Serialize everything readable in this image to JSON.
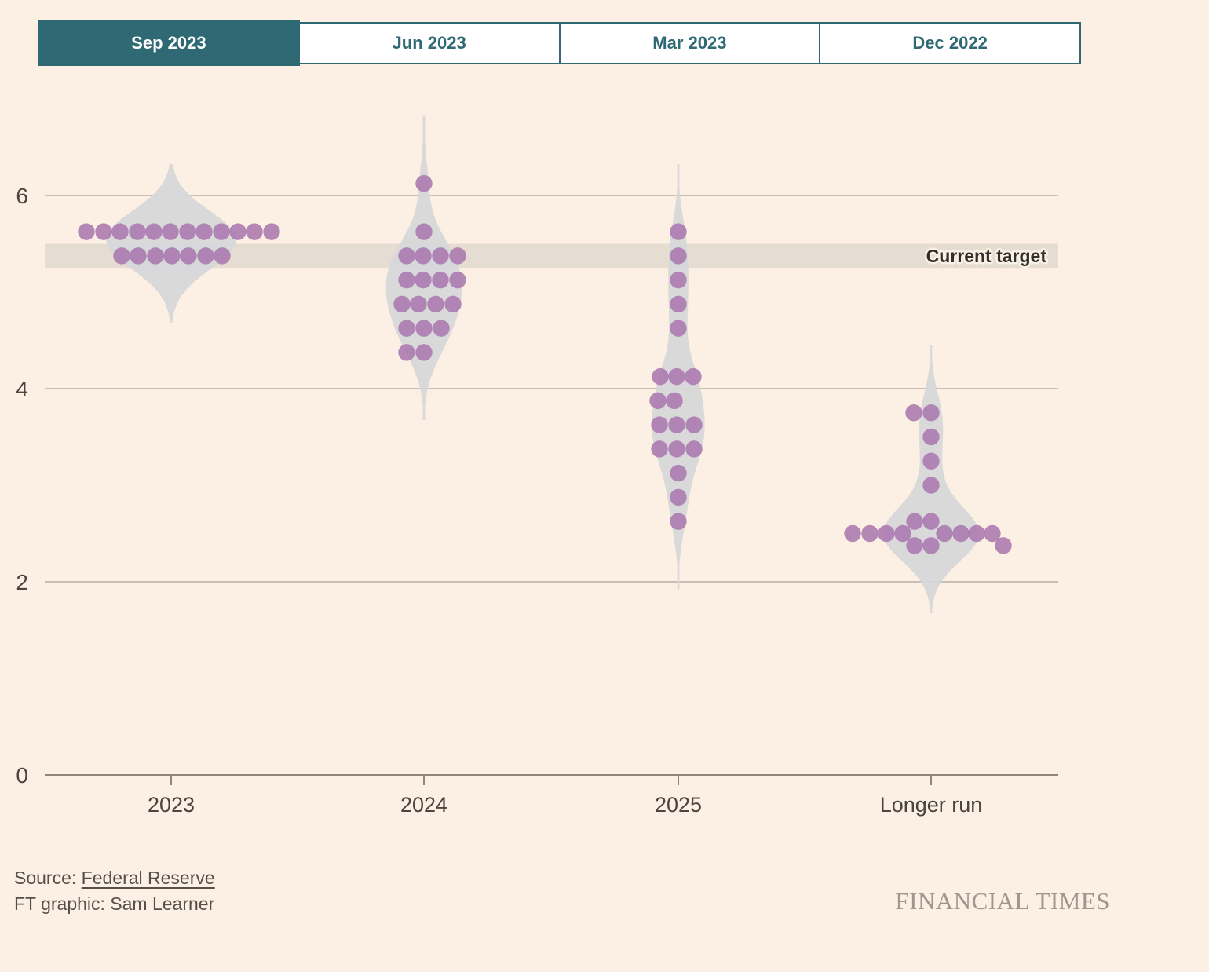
{
  "tabs": [
    {
      "label": "Sep 2023",
      "selected": true
    },
    {
      "label": "Jun 2023",
      "selected": false
    },
    {
      "label": "Mar 2023",
      "selected": false
    },
    {
      "label": "Dec 2022",
      "selected": false
    }
  ],
  "chart_data": {
    "type": "scatter",
    "subtype": "fed-dot-plot-beeswarm-with-violins",
    "y_axis": {
      "ticks": [
        0,
        2,
        4,
        6
      ],
      "range": [
        0,
        6.6
      ],
      "grid": true
    },
    "annotation": {
      "label": "Current target",
      "band_range": [
        5.25,
        5.5
      ]
    },
    "groups": [
      {
        "label": "2023",
        "dots": [
          {
            "v": 5.625,
            "dx": [
              -108,
              -86,
              -65,
              -43,
              -22,
              -1,
              21,
              42,
              64,
              85,
              106,
              128
            ]
          },
          {
            "v": 5.375,
            "dx": [
              -63,
              -42,
              -20,
              1,
              22,
              44,
              65
            ]
          }
        ]
      },
      {
        "label": "2024",
        "dots": [
          {
            "v": 6.125,
            "dx": [
              0
            ]
          },
          {
            "v": 5.625,
            "dx": [
              0
            ]
          },
          {
            "v": 5.375,
            "dx": [
              -22,
              -1,
              21,
              43
            ]
          },
          {
            "v": 5.125,
            "dx": [
              -22,
              -1,
              21,
              43
            ]
          },
          {
            "v": 4.875,
            "dx": [
              -28,
              -7,
              15,
              37
            ]
          },
          {
            "v": 4.625,
            "dx": [
              -22,
              0,
              22
            ]
          },
          {
            "v": 4.375,
            "dx": [
              -22,
              0
            ]
          }
        ]
      },
      {
        "label": "2025",
        "dots": [
          {
            "v": 5.625,
            "dx": [
              0
            ]
          },
          {
            "v": 5.375,
            "dx": [
              0
            ]
          },
          {
            "v": 5.125,
            "dx": [
              0
            ]
          },
          {
            "v": 4.875,
            "dx": [
              0
            ]
          },
          {
            "v": 4.625,
            "dx": [
              0
            ]
          },
          {
            "v": 4.125,
            "dx": [
              -23,
              -2,
              19
            ]
          },
          {
            "v": 3.875,
            "dx": [
              -26,
              -5
            ]
          },
          {
            "v": 3.625,
            "dx": [
              -24,
              -2,
              20
            ]
          },
          {
            "v": 3.375,
            "dx": [
              -24,
              -2,
              20
            ]
          },
          {
            "v": 3.125,
            "dx": [
              0
            ]
          },
          {
            "v": 2.875,
            "dx": [
              0
            ]
          },
          {
            "v": 2.625,
            "dx": [
              0
            ]
          }
        ]
      },
      {
        "label": "Longer run",
        "dots": [
          {
            "v": 3.75,
            "dx": [
              -22,
              0
            ]
          },
          {
            "v": 3.5,
            "dx": [
              0
            ]
          },
          {
            "v": 3.25,
            "dx": [
              0
            ]
          },
          {
            "v": 3.0,
            "dx": [
              0
            ]
          },
          {
            "v": 2.625,
            "dx": [
              -21,
              0
            ]
          },
          {
            "v": 2.5,
            "dx": [
              -100,
              -78,
              -57,
              -36,
              17,
              38,
              58,
              78
            ]
          },
          {
            "v": 2.375,
            "dx": [
              -21,
              0,
              92
            ]
          }
        ]
      }
    ],
    "colors": {
      "dot": "#A874AD",
      "violin": "#D6D7D9",
      "band": "#E6DDD2",
      "accent_teal": "#2F6974",
      "background": "#FCF0E4"
    }
  },
  "footer": {
    "source_prefix": "Source: ",
    "source_link": "Federal Reserve",
    "credit": "FT graphic: Sam Learner",
    "logo": "FINANCIAL TIMES"
  }
}
